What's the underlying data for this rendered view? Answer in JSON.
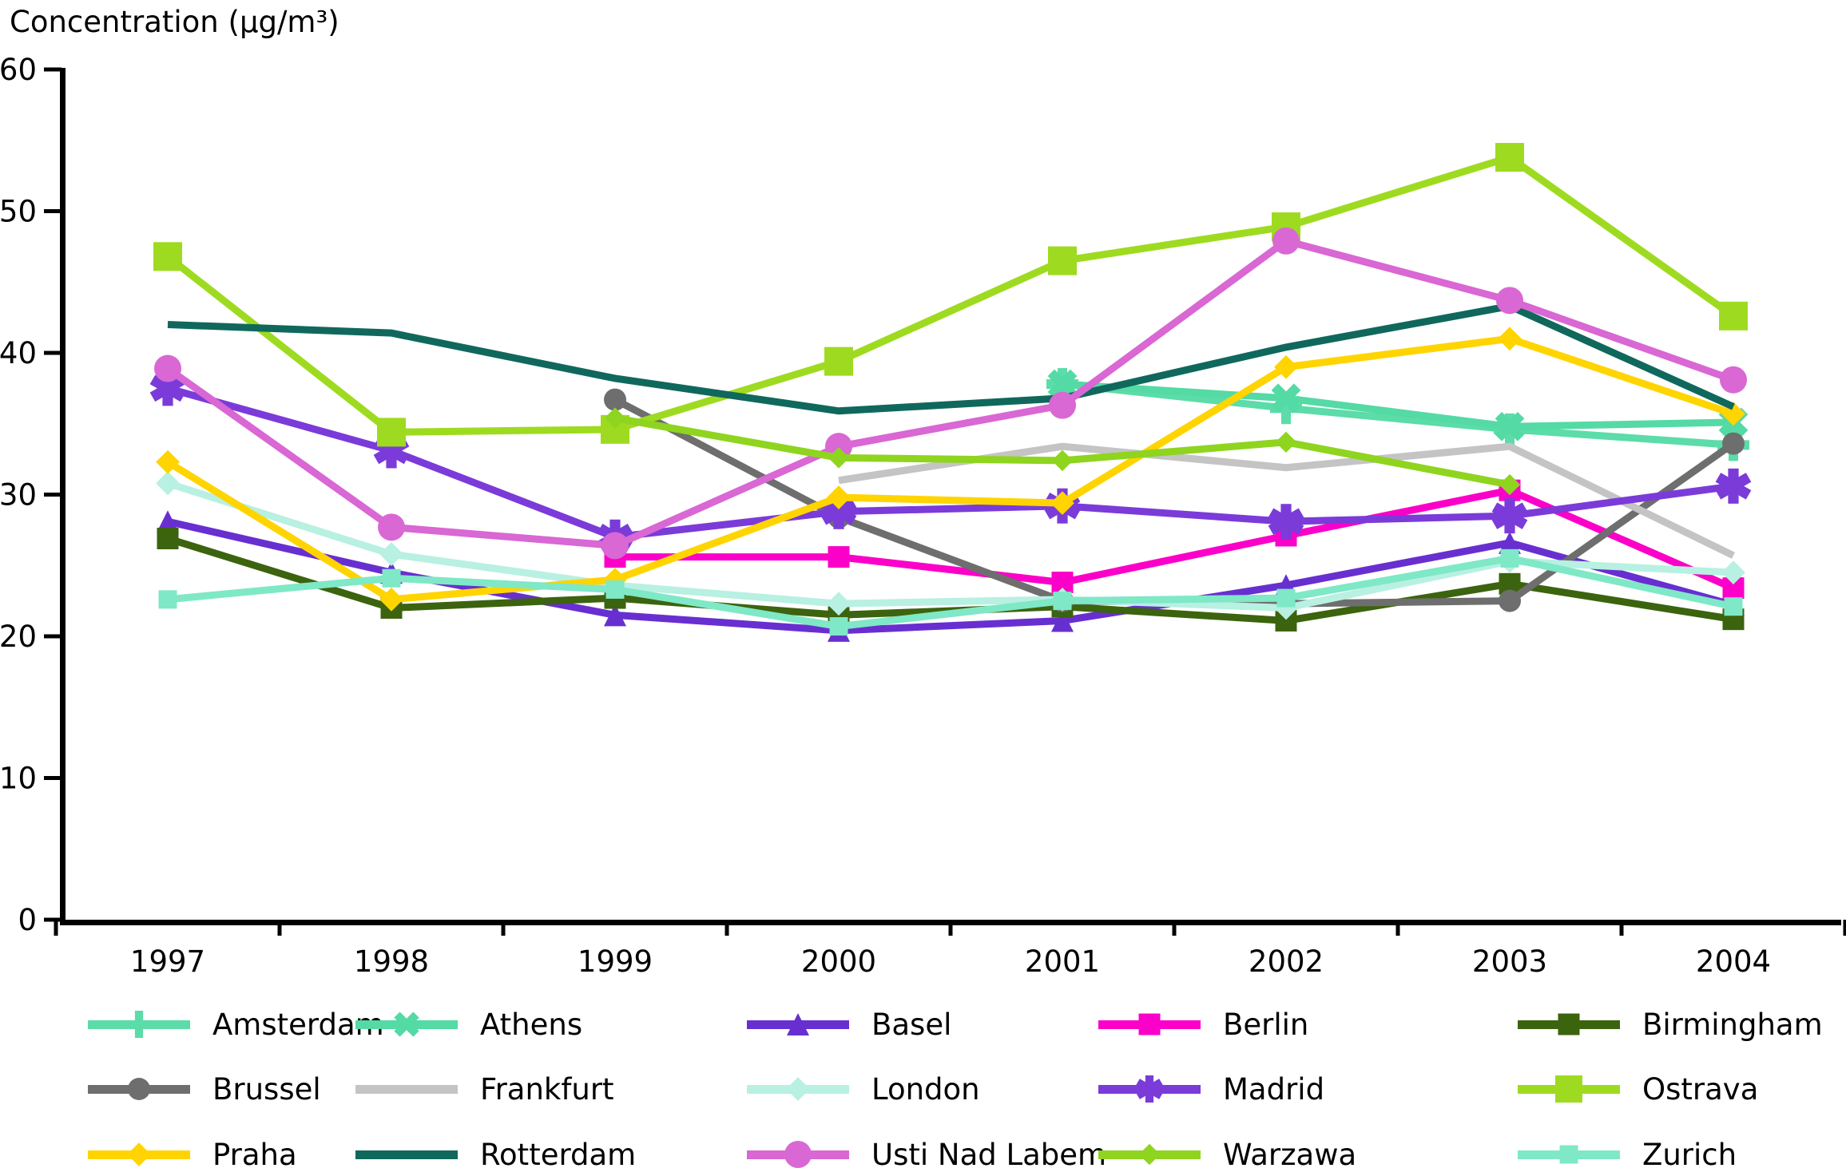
{
  "title": "Concentration (µg/m³)",
  "chart_data": {
    "type": "line",
    "title": "Concentration (µg/m³)",
    "x": [
      1997,
      1998,
      1999,
      2000,
      2001,
      2002,
      2003,
      2004
    ],
    "x_labels": [
      "1997",
      "1998",
      "1999",
      "2000",
      "2001",
      "2002",
      "2003",
      "2004"
    ],
    "ylim": [
      0,
      60
    ],
    "y_ticks": [
      0,
      10,
      20,
      30,
      40,
      50,
      60
    ],
    "grid": false,
    "legend_position": "bottom",
    "series": [
      {
        "name": "Amsterdam",
        "color": "#5bdca8",
        "marker": "plus",
        "marker_size": 40,
        "values": [
          null,
          null,
          null,
          null,
          37.8,
          36.1,
          34.6,
          33.5
        ]
      },
      {
        "name": "Athens",
        "color": "#54daa4",
        "marker": "x",
        "marker_size": 40,
        "values": [
          null,
          null,
          null,
          null,
          37.8,
          36.8,
          34.8,
          35.1
        ]
      },
      {
        "name": "Basel",
        "color": "#682fd0",
        "marker": "triangle",
        "marker_size": 28,
        "values": [
          28.1,
          24.5,
          21.5,
          20.4,
          21.1,
          23.6,
          26.6,
          22.2
        ]
      },
      {
        "name": "Berlin",
        "color": "#fb00c8",
        "marker": "square",
        "marker_size": 27,
        "values": [
          null,
          null,
          25.6,
          25.6,
          23.8,
          27.1,
          30.3,
          23.4
        ]
      },
      {
        "name": "Birmingham",
        "color": "#3c630e",
        "marker": "square",
        "marker_size": 27,
        "values": [
          26.9,
          22.0,
          22.7,
          21.5,
          22.1,
          21.1,
          23.7,
          21.2
        ]
      },
      {
        "name": "Brussel",
        "color": "#6e6e6e",
        "marker": "circle",
        "marker_size": 28,
        "values": [
          null,
          null,
          36.7,
          28.4,
          22.5,
          22.3,
          22.5,
          33.6
        ]
      },
      {
        "name": "Frankfurt",
        "color": "#c4c4c4",
        "marker": "none",
        "marker_size": 0,
        "values": [
          null,
          null,
          null,
          31.0,
          33.4,
          31.9,
          33.4,
          25.7
        ]
      },
      {
        "name": "London",
        "color": "#b8f0e2",
        "marker": "diamond",
        "marker_size": 27,
        "values": [
          30.8,
          25.8,
          23.6,
          22.3,
          22.6,
          22.0,
          25.3,
          24.5
        ]
      },
      {
        "name": "Madrid",
        "color": "#7b3bd9",
        "marker": "asterisk",
        "marker_size": 44,
        "values": [
          37.5,
          33.1,
          27.0,
          28.8,
          29.2,
          28.1,
          28.5,
          30.6
        ]
      },
      {
        "name": "Ostrava",
        "color": "#9edb20",
        "marker": "square",
        "marker_size": 36,
        "values": [
          46.8,
          34.4,
          34.6,
          39.4,
          46.5,
          48.9,
          53.8,
          42.6
        ]
      },
      {
        "name": "Praha",
        "color": "#ffd400",
        "marker": "diamond",
        "marker_size": 27,
        "values": [
          32.3,
          22.6,
          24.0,
          29.8,
          29.4,
          39.0,
          41.0,
          35.7
        ]
      },
      {
        "name": "Rotterdam",
        "color": "#10685c",
        "marker": "none",
        "marker_size": 0,
        "values": [
          42.0,
          41.4,
          38.2,
          35.9,
          36.8,
          40.4,
          43.3,
          36.2
        ]
      },
      {
        "name": "Usti Nad Labem",
        "color": "#d967d4",
        "marker": "circle",
        "marker_size": 34,
        "values": [
          38.9,
          27.7,
          26.4,
          33.4,
          36.3,
          47.9,
          43.7,
          38.1
        ]
      },
      {
        "name": "Warzawa",
        "color": "#8fd41f",
        "marker": "diamond",
        "marker_size": 24,
        "values": [
          null,
          null,
          35.4,
          32.6,
          32.4,
          33.7,
          30.7,
          null
        ]
      },
      {
        "name": "Zurich",
        "color": "#7fe8c6",
        "marker": "square",
        "marker_size": 23,
        "values": [
          22.6,
          24.1,
          23.3,
          20.7,
          22.5,
          22.7,
          25.5,
          22.1
        ]
      }
    ]
  },
  "legend": {
    "entries": [
      {
        "label": "Amsterdam"
      },
      {
        "label": "Athens"
      },
      {
        "label": "Basel"
      },
      {
        "label": "Berlin"
      },
      {
        "label": "Birmingham"
      },
      {
        "label": "Brussel"
      },
      {
        "label": "Frankfurt"
      },
      {
        "label": "London"
      },
      {
        "label": "Madrid"
      },
      {
        "label": "Ostrava"
      },
      {
        "label": "Praha"
      },
      {
        "label": "Rotterdam"
      },
      {
        "label": "Usti Nad Labem"
      },
      {
        "label": "Warzawa"
      },
      {
        "label": "Zurich"
      }
    ]
  }
}
